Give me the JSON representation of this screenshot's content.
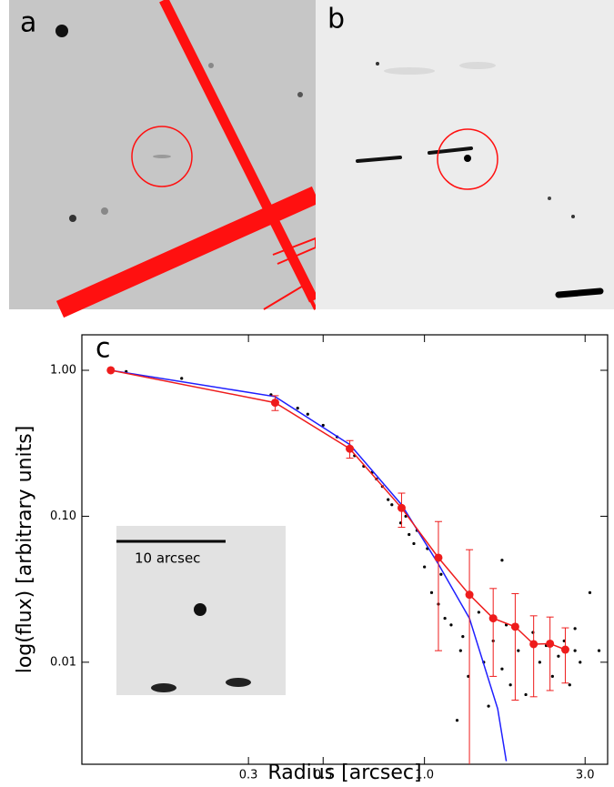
{
  "panels": [
    "a",
    "b"
  ],
  "chart_data": {
    "type": "line",
    "annotation": "c",
    "inset_label": "10 arcsec",
    "xlabel": "Radius [arcsec]",
    "ylabel": "log(flux) [arbitrary units]",
    "xscale": "log",
    "yscale": "log",
    "xlim": [
      0.096,
      3.5
    ],
    "ylim": [
      0.002,
      1.75
    ],
    "xticks": [
      0.3,
      0.5,
      {
        "value": 1,
        "label": "1.0"
      },
      {
        "value": 3,
        "label": "3.0"
      }
    ],
    "yticks": [
      {
        "value": 1,
        "label": "1.00"
      },
      {
        "value": 0.1,
        "label": "0.10"
      },
      {
        "value": 0.01,
        "label": "0.01"
      }
    ],
    "series": [
      {
        "mode": "scatter",
        "color": "#000000",
        "x": [
          0.13,
          0.19,
          0.35,
          0.42,
          0.45,
          0.5,
          0.55,
          0.62,
          0.66,
          0.7,
          0.72,
          0.75,
          0.78,
          0.8,
          0.85,
          0.88,
          0.9,
          0.93,
          0.95,
          1.0,
          1.02,
          1.05,
          1.1,
          1.12,
          1.15,
          1.2,
          1.25,
          1.28,
          1.3,
          1.35,
          1.45,
          1.5,
          1.55,
          1.6,
          1.7,
          1.75,
          1.8,
          1.9,
          2.0,
          2.1,
          2.2,
          2.3,
          2.4,
          2.5,
          2.6,
          2.7,
          2.8,
          2.9,
          3.1,
          3.3,
          1.7,
          2.8
        ],
        "values": [
          0.98,
          0.88,
          0.68,
          0.55,
          0.5,
          0.42,
          0.35,
          0.26,
          0.22,
          0.2,
          0.18,
          0.16,
          0.13,
          0.12,
          0.09,
          0.1,
          0.075,
          0.065,
          0.08,
          0.045,
          0.06,
          0.03,
          0.025,
          0.04,
          0.02,
          0.018,
          0.004,
          0.012,
          0.015,
          0.008,
          0.022,
          0.01,
          0.005,
          0.014,
          0.009,
          0.018,
          0.007,
          0.012,
          0.006,
          0.016,
          0.01,
          0.013,
          0.008,
          0.011,
          0.014,
          0.007,
          0.012,
          0.01,
          0.03,
          0.012,
          0.05,
          0.017
        ]
      },
      {
        "mode": "line",
        "color": "#1f1fff",
        "x": [
          0.117,
          0.36,
          0.6,
          0.855,
          1.1,
          1.36,
          1.65,
          1.75
        ],
        "values": [
          1.0,
          0.66,
          0.31,
          0.12,
          0.047,
          0.02,
          0.0048,
          0.0021
        ]
      },
      {
        "mode": "errorline",
        "color": "#ee1c1c",
        "x": [
          0.117,
          0.36,
          0.6,
          0.855,
          1.1,
          1.36,
          1.6,
          1.86,
          2.11,
          2.36,
          2.62
        ],
        "values": [
          1.0,
          0.6,
          0.29,
          0.114,
          0.052,
          0.029,
          0.02,
          0.0175,
          0.0133,
          0.0134,
          0.0122
        ],
        "errors": [
          0,
          0.07,
          0.04,
          0.03,
          0.04,
          0.03,
          0.012,
          0.012,
          0.0075,
          0.007,
          0.005
        ]
      }
    ]
  }
}
